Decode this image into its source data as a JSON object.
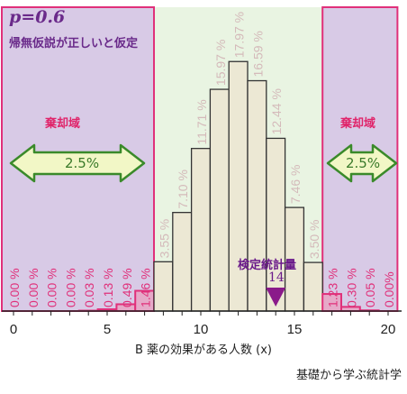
{
  "header": {
    "p_label": "p=0.6",
    "subtitle": "帰無仮説が正しいと仮定"
  },
  "rejection": {
    "left_label": "棄却域",
    "right_label": "棄却域",
    "left_pct": "2.5%",
    "right_pct": "2.5%"
  },
  "statistic": {
    "label": "検定統計量",
    "value": "14"
  },
  "xlabel": "B 薬の効果がある人数 (x)",
  "source": "基礎から学ぶ統計学",
  "colors": {
    "rejection_fill": "#d8cae6",
    "rejection_border": "#e0307a",
    "acceptance_fill": "#e9f4e2",
    "bar_fill": "#ece8d4",
    "bar_stroke": "#333333",
    "highlight_bar": "#e6a9c8",
    "arrow_fill": "#f2f7c6",
    "arrow_stroke": "#3a8a2a",
    "pct_text_rejection": "#e0307a",
    "pct_text_acceptance": "#d4baba",
    "marker": "#8a1a8a"
  },
  "chart_data": {
    "type": "bar",
    "x": [
      0,
      1,
      2,
      3,
      4,
      5,
      6,
      7,
      8,
      9,
      10,
      11,
      12,
      13,
      14,
      15,
      16,
      17,
      18,
      19,
      20
    ],
    "values": [
      0.0,
      0.0,
      0.0,
      0.0,
      0.03,
      0.13,
      0.49,
      1.46,
      3.55,
      7.1,
      11.71,
      15.97,
      17.97,
      16.59,
      12.44,
      7.46,
      3.5,
      1.23,
      0.3,
      0.05,
      0.0
    ],
    "value_labels": [
      "0.00 %",
      "0.00 %",
      "0.00 %",
      "0.00 %",
      "0.03 %",
      "0.13 %",
      "0.49 %",
      "1.46 %",
      "3.55 %",
      "7.10 %",
      "11.71 %",
      "15.97 %",
      "17.97 %",
      "16.59 %",
      "12.44 %",
      "7.46 %",
      "3.50 %",
      "1.23 %",
      "0.30 %",
      "0.05 %",
      "0.00%"
    ],
    "xticks": [
      "0",
      "5",
      "10",
      "15",
      "20"
    ],
    "xtick_values": [
      0,
      5,
      10,
      15,
      20
    ],
    "xlim": [
      0,
      20
    ],
    "ylim": [
      0,
      20
    ],
    "rejection_left_max": 7,
    "rejection_right_min": 17,
    "test_statistic": 14,
    "grid": false,
    "legend": "none"
  }
}
